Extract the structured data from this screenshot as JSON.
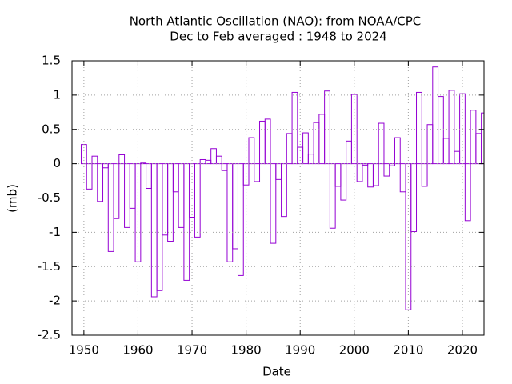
{
  "chart_data": {
    "type": "bar",
    "title": "North Atlantic Oscillation (NAO): from NOAA/CPC",
    "subtitle": "Dec to Feb averaged : 1948 to 2024",
    "xlabel": "Date",
    "ylabel": "(mb)",
    "x": [
      1950,
      1951,
      1952,
      1953,
      1954,
      1955,
      1956,
      1957,
      1958,
      1959,
      1960,
      1961,
      1962,
      1963,
      1964,
      1965,
      1966,
      1967,
      1968,
      1969,
      1970,
      1971,
      1972,
      1973,
      1974,
      1975,
      1976,
      1977,
      1978,
      1979,
      1980,
      1981,
      1982,
      1983,
      1984,
      1985,
      1986,
      1987,
      1988,
      1989,
      1990,
      1991,
      1992,
      1993,
      1994,
      1995,
      1996,
      1997,
      1998,
      1999,
      2000,
      2001,
      2002,
      2003,
      2004,
      2005,
      2006,
      2007,
      2008,
      2009,
      2010,
      2011,
      2012,
      2013,
      2014,
      2015,
      2016,
      2017,
      2018,
      2019,
      2020,
      2021,
      2022,
      2023,
      2024
    ],
    "values": [
      0.28,
      -0.37,
      0.11,
      -0.55,
      -0.06,
      -1.28,
      -0.8,
      0.13,
      -0.93,
      -0.65,
      -1.43,
      0.01,
      -0.36,
      -1.94,
      -1.85,
      -1.04,
      -1.13,
      -0.41,
      -0.93,
      -1.7,
      -0.78,
      -1.07,
      0.06,
      0.05,
      0.22,
      0.11,
      -0.1,
      -1.43,
      -1.24,
      -1.63,
      -0.31,
      0.38,
      -0.26,
      0.62,
      0.65,
      -1.16,
      -0.23,
      -0.77,
      0.44,
      1.04,
      0.24,
      0.45,
      0.14,
      0.6,
      0.72,
      1.06,
      -0.94,
      -0.33,
      -0.53,
      0.33,
      1.01,
      -0.26,
      -0.02,
      -0.34,
      -0.32,
      0.59,
      -0.18,
      -0.03,
      0.38,
      -0.41,
      -2.13,
      -0.99,
      1.04,
      -0.33,
      0.57,
      1.41,
      0.98,
      0.37,
      1.07,
      0.18,
      1.02,
      -0.83,
      0.78,
      0.44,
      0.74
    ],
    "color": "#9400d3",
    "xlim": [
      1947.8,
      2024
    ],
    "xticks": [
      1950,
      1960,
      1970,
      1980,
      1990,
      2000,
      2010,
      2020
    ],
    "ylim": [
      -2.5,
      1.5
    ],
    "yticks": [
      1.5,
      1,
      0.5,
      0,
      -0.5,
      -1,
      -1.5,
      -2,
      -2.5
    ],
    "grid": true
  }
}
